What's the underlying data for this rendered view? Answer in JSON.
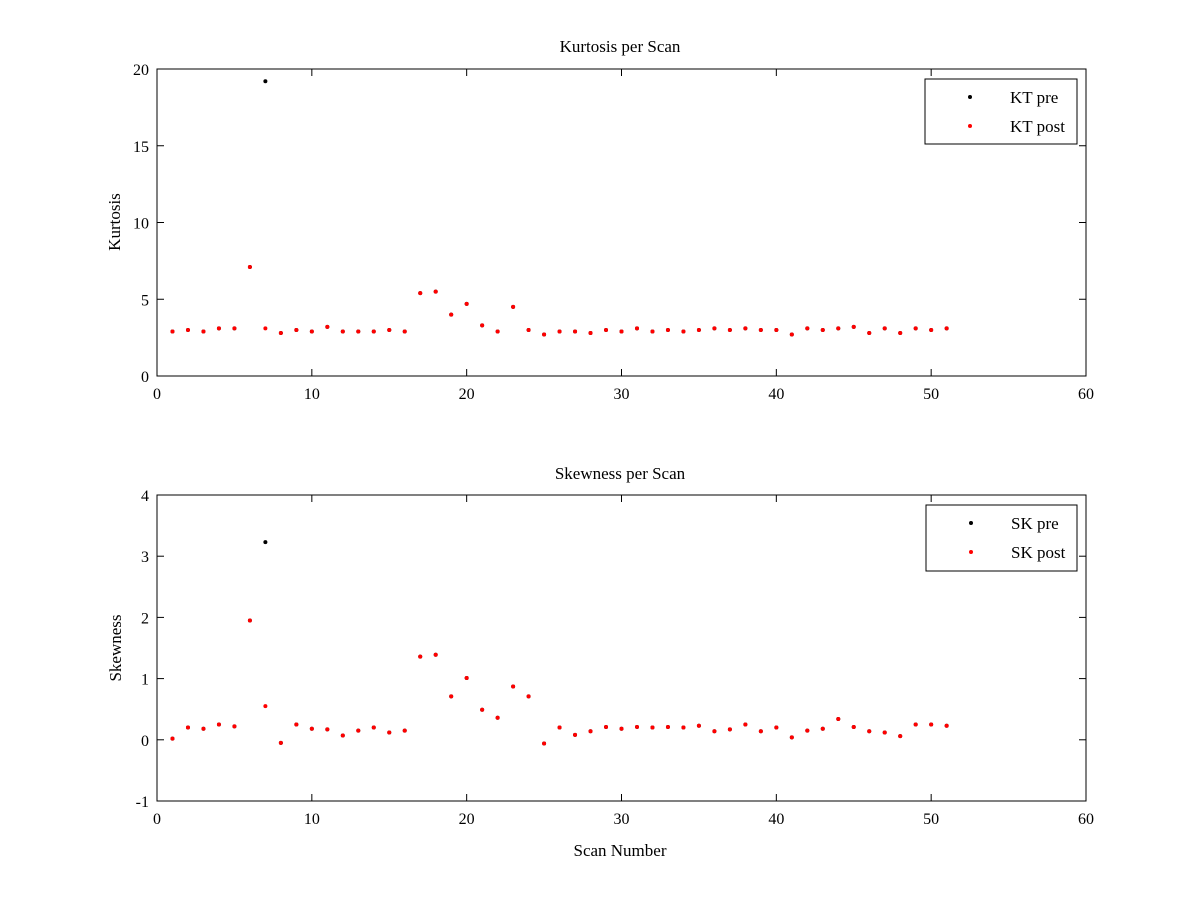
{
  "chart_data": [
    {
      "type": "scatter",
      "title": "Kurtosis per Scan",
      "xlabel": "",
      "ylabel": "Kurtosis",
      "xlim": [
        0,
        60
      ],
      "ylim": [
        0,
        20
      ],
      "xticks": [
        0,
        10,
        20,
        30,
        40,
        50,
        60
      ],
      "yticks": [
        0,
        5,
        10,
        15,
        20
      ],
      "grid": false,
      "legend_position": "top-right",
      "series": [
        {
          "name": "KT pre",
          "color": "#000000",
          "marker": "dot",
          "x": [
            1,
            2,
            3,
            4,
            5,
            6,
            7,
            8,
            9,
            10,
            11,
            12,
            13,
            14,
            15,
            16,
            17,
            18,
            19,
            20,
            21,
            22,
            23,
            24,
            25,
            26,
            27,
            28,
            29,
            30,
            31,
            32,
            33,
            34,
            35,
            36,
            37,
            38,
            39,
            40,
            41,
            42,
            43,
            44,
            45,
            46,
            47,
            48,
            49,
            50,
            51
          ],
          "y": [
            2.9,
            3.0,
            2.9,
            3.1,
            3.1,
            7.1,
            19.2,
            2.8,
            3.0,
            2.9,
            3.2,
            2.9,
            2.9,
            2.9,
            3.0,
            2.9,
            5.4,
            5.5,
            4.0,
            4.7,
            3.3,
            2.9,
            4.5,
            3.0,
            2.7,
            2.9,
            2.9,
            2.8,
            3.0,
            2.9,
            3.1,
            2.9,
            3.0,
            2.9,
            3.0,
            3.1,
            3.0,
            3.1,
            3.0,
            3.0,
            2.7,
            3.1,
            3.0,
            3.1,
            3.2,
            2.8,
            3.1,
            2.8,
            3.1,
            3.0,
            3.1
          ]
        },
        {
          "name": "KT post",
          "color": "#ff0000",
          "marker": "dot",
          "x": [
            1,
            2,
            3,
            4,
            5,
            6,
            7,
            8,
            9,
            10,
            11,
            12,
            13,
            14,
            15,
            16,
            17,
            18,
            19,
            20,
            21,
            22,
            23,
            24,
            25,
            26,
            27,
            28,
            29,
            30,
            31,
            32,
            33,
            34,
            35,
            36,
            37,
            38,
            39,
            40,
            41,
            42,
            43,
            44,
            45,
            46,
            47,
            48,
            49,
            50,
            51
          ],
          "y": [
            2.9,
            3.0,
            2.9,
            3.1,
            3.1,
            7.1,
            3.1,
            2.8,
            3.0,
            2.9,
            3.2,
            2.9,
            2.9,
            2.9,
            3.0,
            2.9,
            5.4,
            5.5,
            4.0,
            4.7,
            3.3,
            2.9,
            4.5,
            3.0,
            2.7,
            2.9,
            2.9,
            2.8,
            3.0,
            2.9,
            3.1,
            2.9,
            3.0,
            2.9,
            3.0,
            3.1,
            3.0,
            3.1,
            3.0,
            3.0,
            2.7,
            3.1,
            3.0,
            3.1,
            3.2,
            2.8,
            3.1,
            2.8,
            3.1,
            3.0,
            3.1
          ]
        }
      ]
    },
    {
      "type": "scatter",
      "title": "Skewness per Scan",
      "xlabel": "Scan Number",
      "ylabel": "Skewness",
      "xlim": [
        0,
        60
      ],
      "ylim": [
        -1,
        4
      ],
      "xticks": [
        0,
        10,
        20,
        30,
        40,
        50,
        60
      ],
      "yticks": [
        -1,
        0,
        1,
        2,
        3,
        4
      ],
      "grid": false,
      "legend_position": "top-right",
      "series": [
        {
          "name": "SK pre",
          "color": "#000000",
          "marker": "dot",
          "x": [
            1,
            2,
            3,
            4,
            5,
            6,
            7,
            8,
            9,
            10,
            11,
            12,
            13,
            14,
            15,
            16,
            17,
            18,
            19,
            20,
            21,
            22,
            23,
            24,
            25,
            26,
            27,
            28,
            29,
            30,
            31,
            32,
            33,
            34,
            35,
            36,
            37,
            38,
            39,
            40,
            41,
            42,
            43,
            44,
            45,
            46,
            47,
            48,
            49,
            50,
            51
          ],
          "y": [
            0.02,
            0.2,
            0.18,
            0.25,
            0.22,
            1.95,
            3.23,
            -0.05,
            0.25,
            0.18,
            0.17,
            0.07,
            0.15,
            0.2,
            0.12,
            0.15,
            1.36,
            1.39,
            0.71,
            1.01,
            0.49,
            0.36,
            0.87,
            0.71,
            -0.06,
            0.2,
            0.08,
            0.14,
            0.21,
            0.18,
            0.21,
            0.2,
            0.21,
            0.2,
            0.23,
            0.14,
            0.17,
            0.25,
            0.14,
            0.2,
            0.04,
            0.15,
            0.18,
            0.34,
            0.21,
            0.14,
            0.12,
            0.06,
            0.25,
            0.25,
            0.23
          ]
        },
        {
          "name": "SK post",
          "color": "#ff0000",
          "marker": "dot",
          "x": [
            1,
            2,
            3,
            4,
            5,
            6,
            7,
            8,
            9,
            10,
            11,
            12,
            13,
            14,
            15,
            16,
            17,
            18,
            19,
            20,
            21,
            22,
            23,
            24,
            25,
            26,
            27,
            28,
            29,
            30,
            31,
            32,
            33,
            34,
            35,
            36,
            37,
            38,
            39,
            40,
            41,
            42,
            43,
            44,
            45,
            46,
            47,
            48,
            49,
            50,
            51
          ],
          "y": [
            0.02,
            0.2,
            0.18,
            0.25,
            0.22,
            1.95,
            0.55,
            -0.05,
            0.25,
            0.18,
            0.17,
            0.07,
            0.15,
            0.2,
            0.12,
            0.15,
            1.36,
            1.39,
            0.71,
            1.01,
            0.49,
            0.36,
            0.87,
            0.71,
            -0.06,
            0.2,
            0.08,
            0.14,
            0.21,
            0.18,
            0.21,
            0.2,
            0.21,
            0.2,
            0.23,
            0.14,
            0.17,
            0.25,
            0.14,
            0.2,
            0.04,
            0.15,
            0.18,
            0.34,
            0.21,
            0.14,
            0.12,
            0.06,
            0.25,
            0.25,
            0.23
          ]
        }
      ]
    }
  ]
}
